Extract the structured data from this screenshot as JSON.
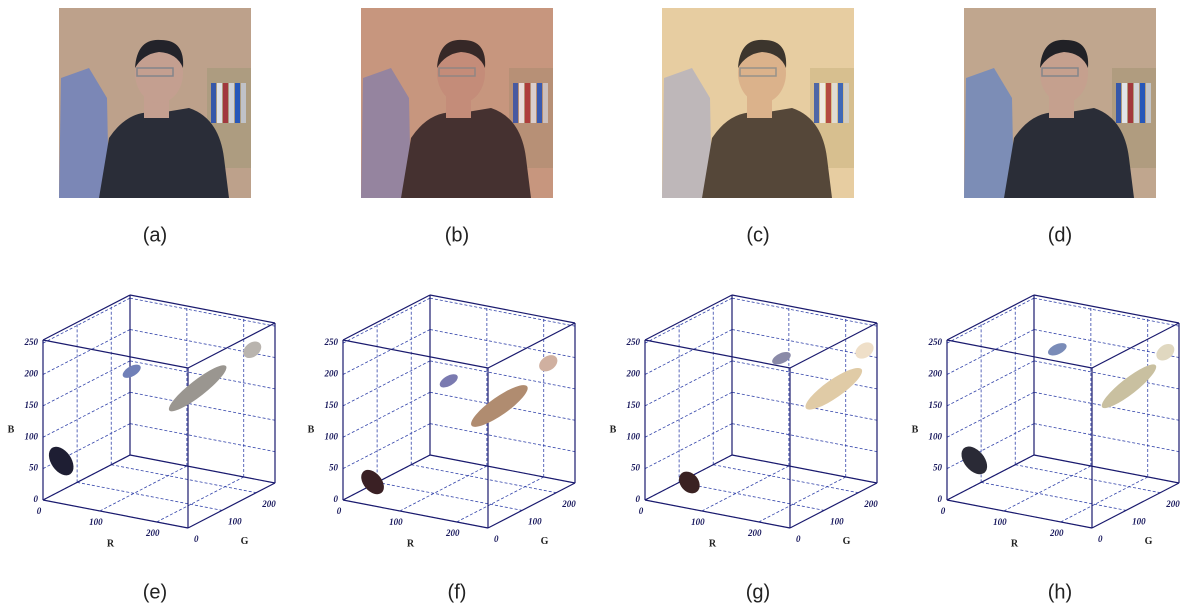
{
  "photos": [
    {
      "label": "(a)"
    },
    {
      "label": "(b)"
    },
    {
      "label": "(c)"
    },
    {
      "label": "(d)"
    }
  ],
  "plots": [
    {
      "label": "(e)",
      "r_label": "R",
      "g_label": "G",
      "b_label": "B",
      "rlim": [
        0,
        255
      ],
      "glim": [
        0,
        255
      ],
      "blim": [
        0,
        255
      ],
      "rticks": [
        0,
        100,
        200
      ],
      "gticks": [
        0,
        100,
        200
      ],
      "bticks": [
        0,
        50,
        100,
        150,
        200,
        250
      ]
    },
    {
      "label": "(f)",
      "r_label": "R",
      "g_label": "G",
      "b_label": "B",
      "rlim": [
        0,
        255
      ],
      "glim": [
        0,
        255
      ],
      "blim": [
        0,
        255
      ],
      "rticks": [
        0,
        100,
        200
      ],
      "gticks": [
        0,
        100,
        200
      ],
      "bticks": [
        0,
        50,
        100,
        150,
        200,
        250
      ]
    },
    {
      "label": "(g)",
      "r_label": "R",
      "g_label": "G",
      "b_label": "B",
      "rlim": [
        0,
        255
      ],
      "glim": [
        0,
        255
      ],
      "blim": [
        0,
        255
      ],
      "rticks": [
        0,
        100,
        200
      ],
      "gticks": [
        0,
        100,
        200
      ],
      "bticks": [
        0,
        50,
        100,
        150,
        200,
        250
      ]
    },
    {
      "label": "(h)",
      "r_label": "R",
      "g_label": "G",
      "b_label": "B",
      "rlim": [
        0,
        255
      ],
      "glim": [
        0,
        255
      ],
      "blim": [
        0,
        255
      ],
      "rticks": [
        0,
        100,
        200
      ],
      "gticks": [
        0,
        100,
        200
      ],
      "bticks": [
        0,
        50,
        100,
        150,
        200,
        250
      ]
    }
  ]
}
